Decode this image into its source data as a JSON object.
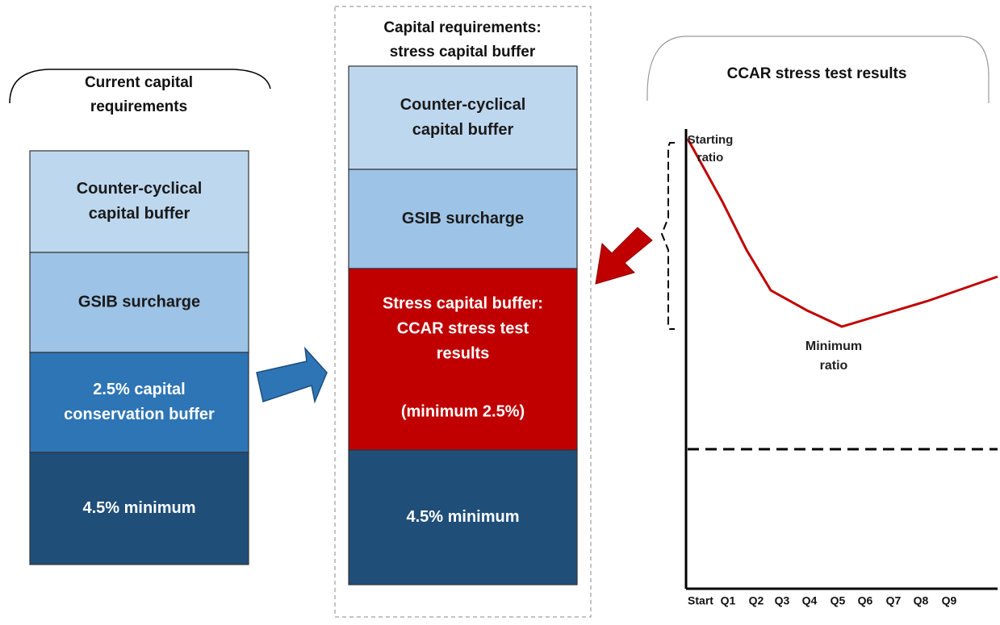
{
  "left": {
    "title": [
      "Current capital",
      "requirements"
    ],
    "blocks": [
      {
        "lines": [
          "Counter-cyclical",
          "capital buffer"
        ]
      },
      {
        "lines": [
          "GSIB surcharge"
        ]
      },
      {
        "lines": [
          "2.5% capital",
          "conservation buffer"
        ]
      },
      {
        "lines": [
          "4.5% minimum"
        ]
      }
    ]
  },
  "middle": {
    "title": [
      "Capital requirements:",
      "stress capital buffer"
    ],
    "blocks": [
      {
        "lines": [
          "Counter-cyclical",
          "capital buffer"
        ]
      },
      {
        "lines": [
          "GSIB surcharge"
        ]
      },
      {
        "lines": [
          "Stress capital buffer:",
          "CCAR stress test",
          "results"
        ],
        "note": "(minimum 2.5%)"
      },
      {
        "lines": [
          "4.5% minimum"
        ]
      }
    ]
  },
  "right": {
    "title": "CCAR stress test results",
    "start_label": [
      "Starting",
      "ratio"
    ],
    "min_label": [
      "Minimum",
      "ratio"
    ],
    "x_labels": [
      "Start",
      "Q1",
      "Q2",
      "Q3",
      "Q4",
      "Q5",
      "Q6",
      "Q7",
      "Q8",
      "Q9"
    ]
  }
}
